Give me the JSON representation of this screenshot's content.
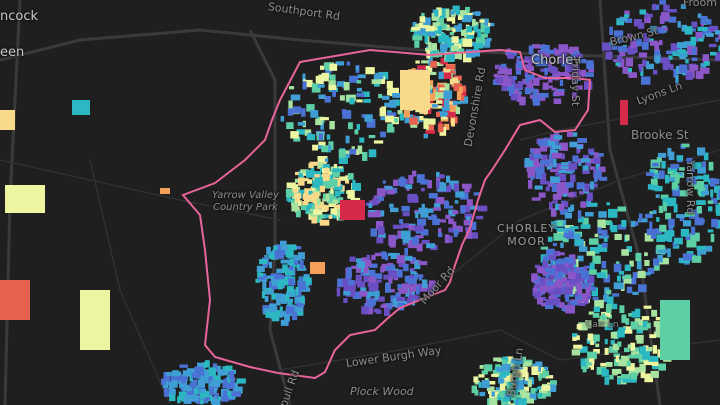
{
  "map": {
    "background": "#1f1f1f",
    "boundary_color": "#e8649a",
    "palette": [
      "#6a4fc4",
      "#8a56c8",
      "#4a72d4",
      "#3f9ed4",
      "#2bb8c2",
      "#5ccfa4",
      "#a9e3a0",
      "#eef5a0",
      "#f9d98a",
      "#f5a05a",
      "#e8604e",
      "#d62a4a"
    ],
    "labels": {
      "chancock": "ncock",
      "green": "een",
      "southport_rd": "Southport Rd",
      "chorley": "Chorley",
      "friday_st": "Friday St",
      "brown_st": "Brown St",
      "froom_st": "Froom St",
      "lyons_ln": "Lyons Ln",
      "brooke_st": "Brooke St",
      "yarrow_rd": "Yarrow Rd",
      "devonshire_rd": "Devonshire Rd",
      "park_line1": "Yarrow Valley",
      "park_line2": "Country Park",
      "moor_line1": "CHORLEY",
      "moor_line2": "MOOR",
      "moor_rd": "Moor Rd",
      "carr_ln": "Carr Ln",
      "lower_burgh_way": "Lower Burgh Way",
      "burgh_ln": "Burgh Ln",
      "plock_wood": "Plock Wood",
      "pull_rd": "pull Rd"
    }
  }
}
